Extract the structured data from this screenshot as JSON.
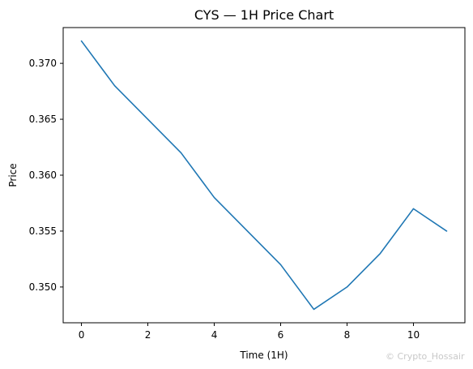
{
  "chart_data": {
    "type": "line",
    "title": "CYS — 1H Price Chart",
    "xlabel": "Time (1H)",
    "ylabel": "Price",
    "x": [
      0,
      1,
      2,
      3,
      4,
      5,
      6,
      7,
      8,
      9,
      10,
      11
    ],
    "series": [
      {
        "values": [
          0.372,
          0.368,
          0.365,
          0.362,
          0.358,
          0.355,
          0.352,
          0.348,
          0.35,
          0.353,
          0.357,
          0.355
        ],
        "color": "#1f77b4"
      }
    ],
    "xlim": [
      -0.55,
      11.55
    ],
    "ylim": [
      0.3468,
      0.3732
    ],
    "xticks": [
      0,
      2,
      4,
      6,
      8,
      10
    ],
    "xtick_labels": [
      "0",
      "2",
      "4",
      "6",
      "8",
      "10"
    ],
    "yticks": [
      0.35,
      0.355,
      0.36,
      0.365,
      0.37
    ],
    "ytick_labels": [
      "0.350",
      "0.355",
      "0.360",
      "0.365",
      "0.370"
    ],
    "grid": false,
    "legend": "none"
  },
  "watermark": {
    "text": "© Crypto_Hossair"
  }
}
